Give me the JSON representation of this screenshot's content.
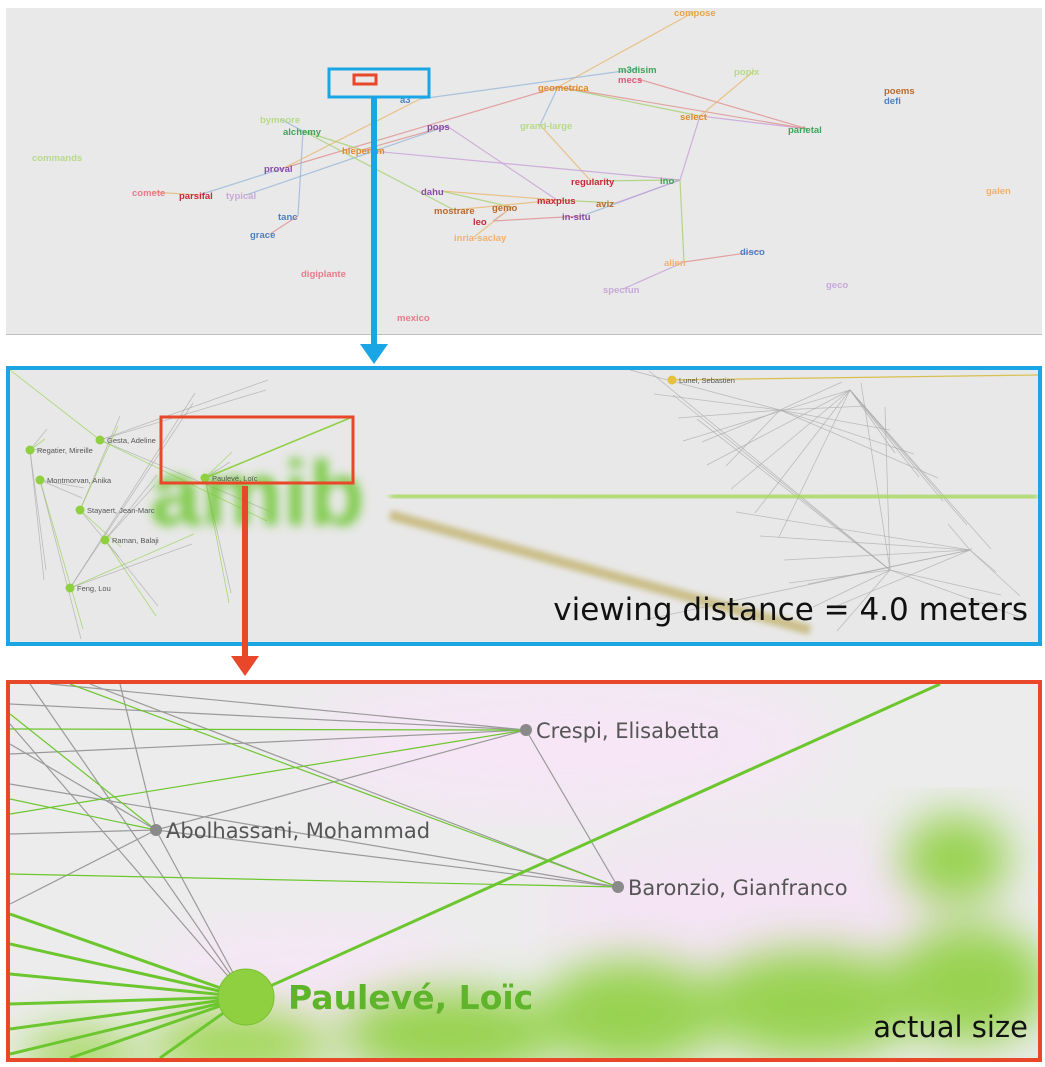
{
  "overview": {
    "nodes": [
      {
        "label": "compose",
        "color": "#e8a34a"
      },
      {
        "label": "m3disim",
        "color": "#3fa35a"
      },
      {
        "label": "mecs",
        "color": "#d85a7a"
      },
      {
        "label": "popix",
        "color": "#b7d98a"
      },
      {
        "label": "poems",
        "color": "#b86a2e"
      },
      {
        "label": "defi",
        "color": "#4f7fbf"
      },
      {
        "label": "geometrica",
        "color": "#e08a2a"
      },
      {
        "label": "a3",
        "color": "#4f7fbf"
      },
      {
        "label": "bymoore",
        "color": "#b7d98a"
      },
      {
        "label": "alchemy",
        "color": "#3fa35a"
      },
      {
        "label": "pops",
        "color": "#8a4aa8"
      },
      {
        "label": "grand-large",
        "color": "#b7d98a"
      },
      {
        "label": "select",
        "color": "#e08a2a"
      },
      {
        "label": "parietal",
        "color": "#3fa35a"
      },
      {
        "label": "commands",
        "color": "#b7d98a"
      },
      {
        "label": "hiepertim",
        "color": "#e08a2a"
      },
      {
        "label": "proval",
        "color": "#8a4aa8"
      },
      {
        "label": "regularity",
        "color": "#c8293a"
      },
      {
        "label": "ino",
        "color": "#3fa35a"
      },
      {
        "label": "galen",
        "color": "#f0b070"
      },
      {
        "label": "comete",
        "color": "#e87a8a"
      },
      {
        "label": "parsifal",
        "color": "#c8293a"
      },
      {
        "label": "typical",
        "color": "#c8a8d8"
      },
      {
        "label": "dahu",
        "color": "#8a4aa8"
      },
      {
        "label": "mostrare",
        "color": "#b86a2e"
      },
      {
        "label": "gemo",
        "color": "#b86a2e"
      },
      {
        "label": "maxplus",
        "color": "#c8293a"
      },
      {
        "label": "aviz",
        "color": "#b86a2e"
      },
      {
        "label": "leo",
        "color": "#c8293a"
      },
      {
        "label": "in-situ",
        "color": "#8a4aa8"
      },
      {
        "label": "tanc",
        "color": "#4f7fbf"
      },
      {
        "label": "grace",
        "color": "#4f7fbf"
      },
      {
        "label": "inria-saclay",
        "color": "#f0b070"
      },
      {
        "label": "disco",
        "color": "#4f7fbf"
      },
      {
        "label": "alien",
        "color": "#f0b070"
      },
      {
        "label": "digiplante",
        "color": "#e87a8a"
      },
      {
        "label": "geco",
        "color": "#c8a8d8"
      },
      {
        "label": "specfun",
        "color": "#c8a8d8"
      },
      {
        "label": "mexico",
        "color": "#e87a8a"
      }
    ]
  },
  "midview": {
    "caption": "viewing distance = 4.0 meters",
    "cluster_label": "amib",
    "names": [
      "Gesta, Adeline",
      "Regatier, Mireille",
      "Montmorvan, Anika",
      "Stayaert, Jean-Marc",
      "Raman, Balaji",
      "Feng, Lou",
      "Paulevé, Loïc",
      "Lunel, Sebastien"
    ]
  },
  "detail": {
    "caption": "actual size",
    "nodes": [
      {
        "label": "Crespi, Elisabetta"
      },
      {
        "label": "Abolhassani, Mohammad"
      },
      {
        "label": "Baronzio, Gianfranco"
      },
      {
        "label": "Paulevé, Loïc"
      }
    ]
  },
  "colors": {
    "blue_frame": "#1aa6e4",
    "red_frame": "#e8472a",
    "green": "#6cc62e",
    "grey_edge": "#9a9a9a"
  }
}
